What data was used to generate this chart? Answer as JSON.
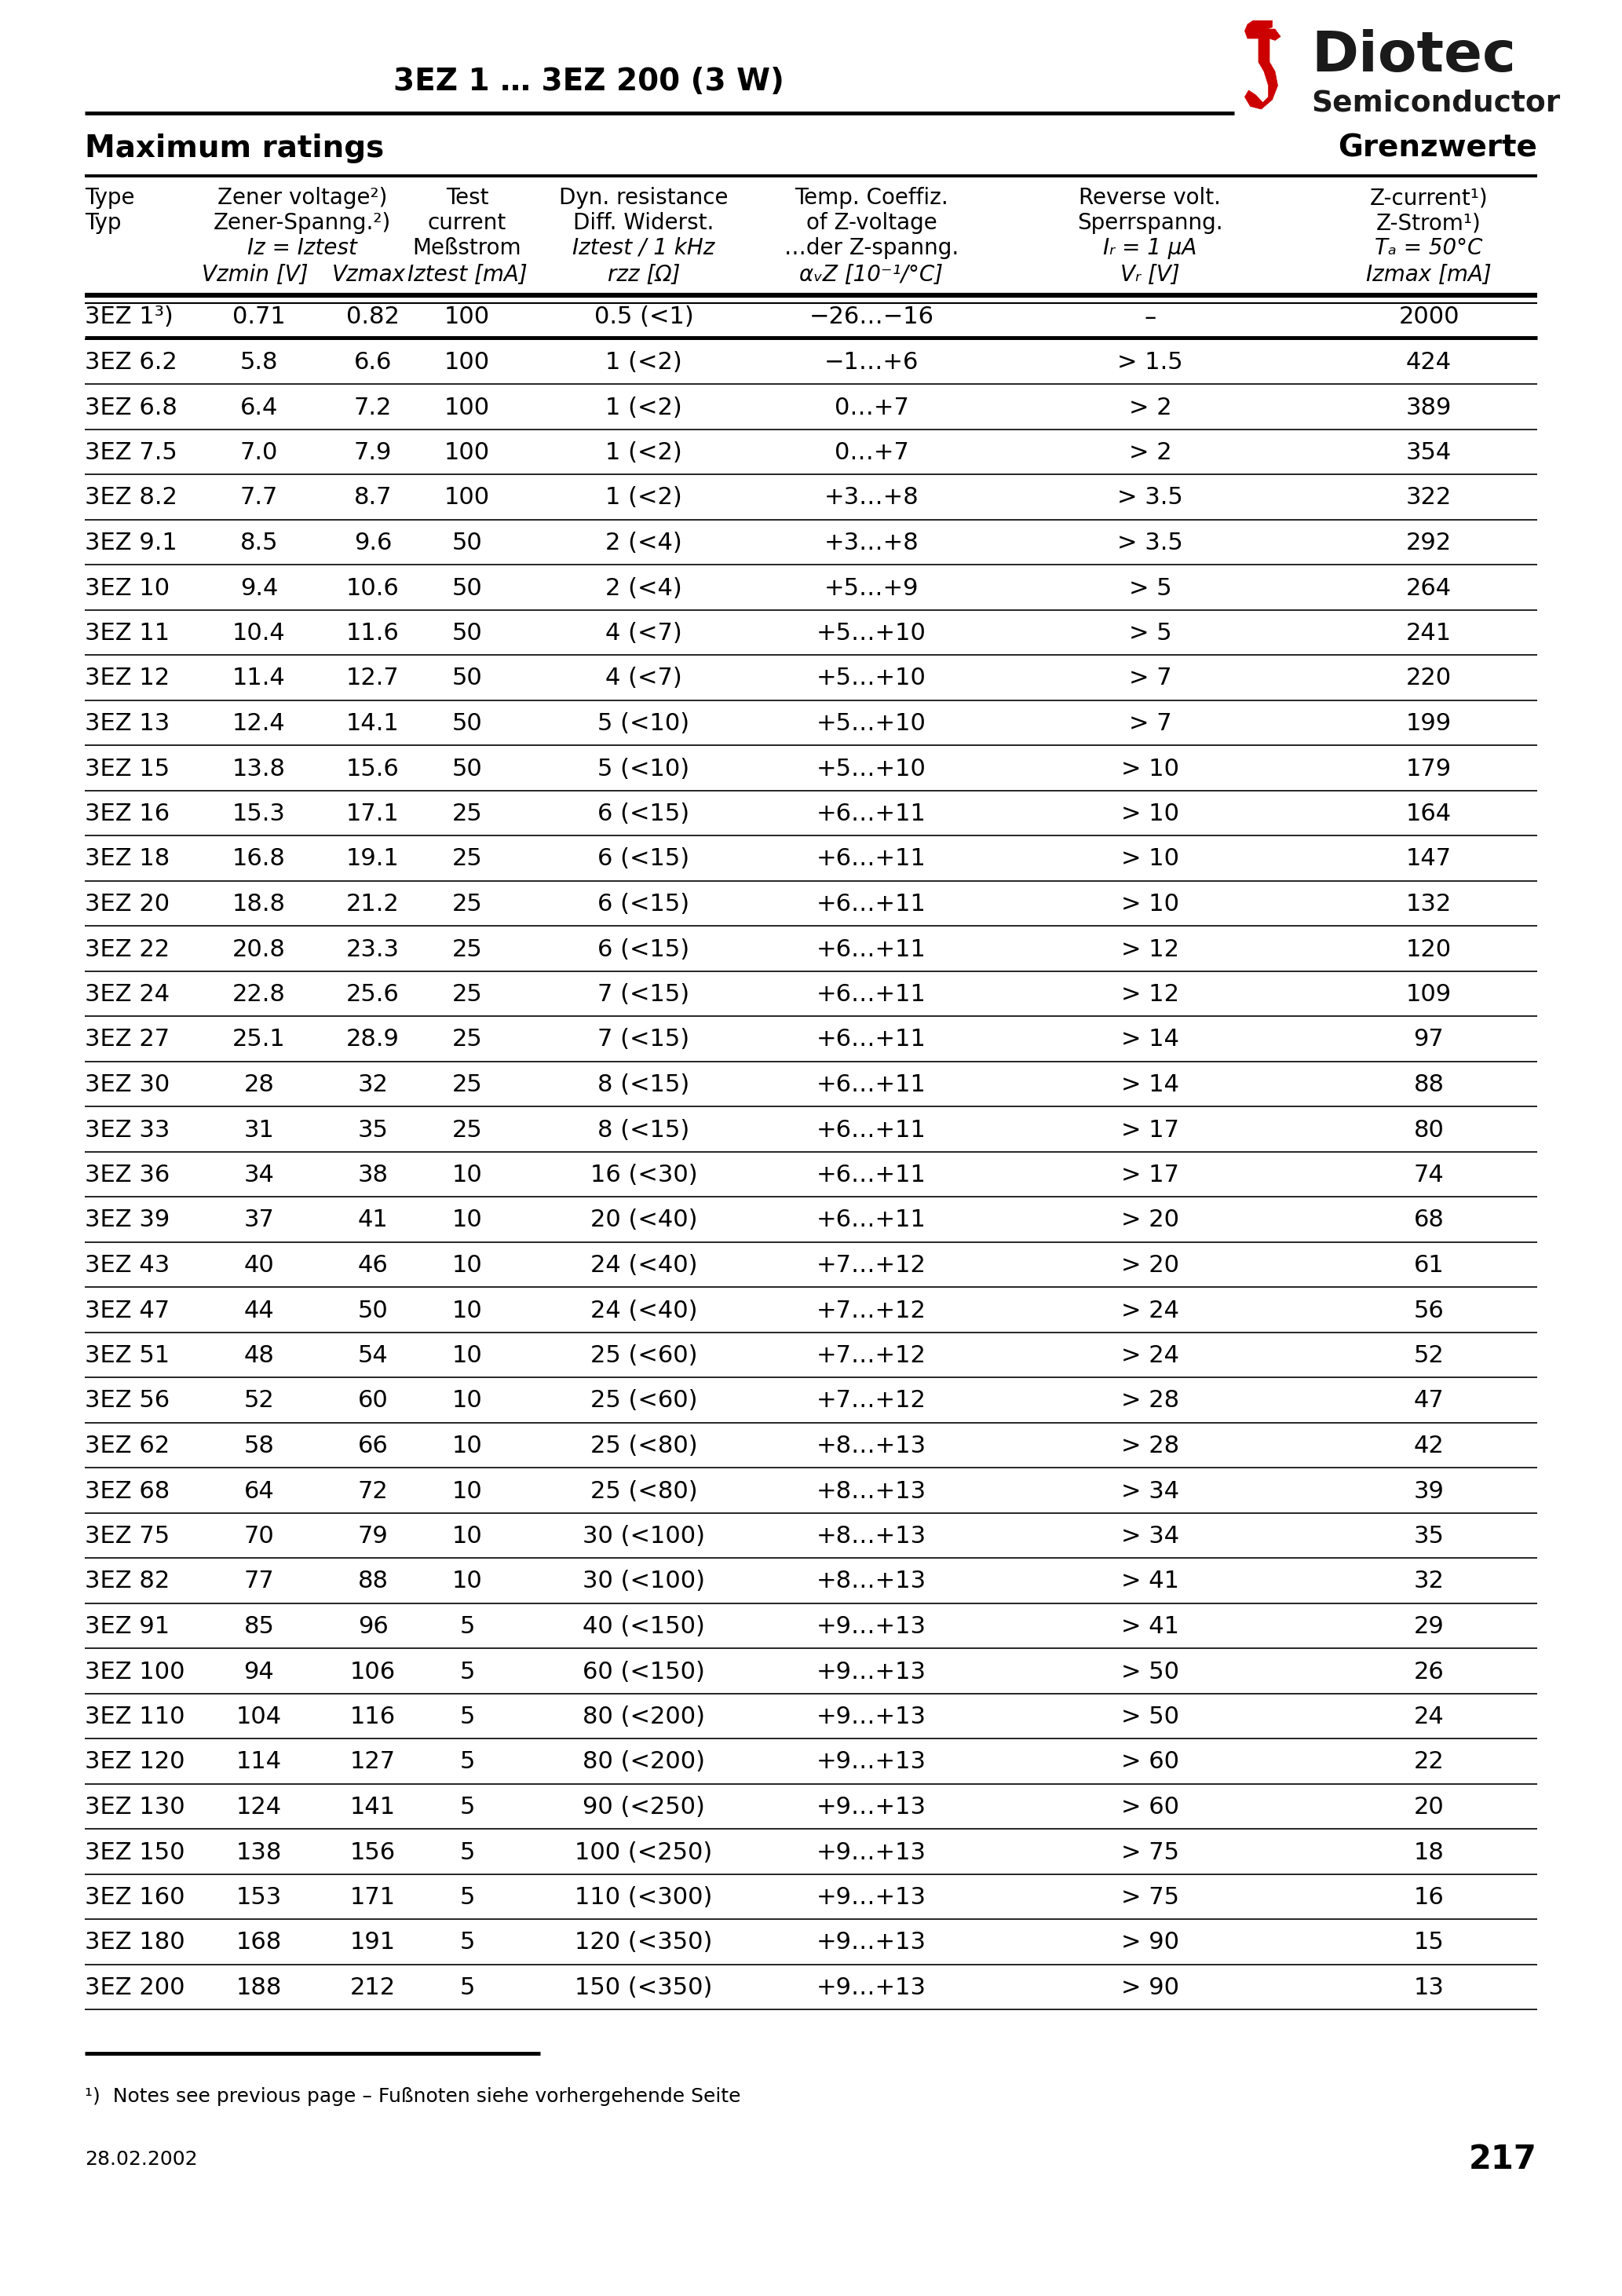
{
  "title": "3EZ 1 … 3EZ 200 (3 W)",
  "header_left": "Maximum ratings",
  "header_right": "Grenzwerte",
  "rows": [
    [
      "3EZ 1³)",
      "0.71",
      "0.82",
      "100",
      "0.5 (<1)",
      "−26…−16",
      "–",
      "2000"
    ],
    [
      "3EZ 6.2",
      "5.8",
      "6.6",
      "100",
      "1 (<2)",
      "−1…+6",
      "> 1.5",
      "424"
    ],
    [
      "3EZ 6.8",
      "6.4",
      "7.2",
      "100",
      "1 (<2)",
      "0…+7",
      "> 2",
      "389"
    ],
    [
      "3EZ 7.5",
      "7.0",
      "7.9",
      "100",
      "1 (<2)",
      "0…+7",
      "> 2",
      "354"
    ],
    [
      "3EZ 8.2",
      "7.7",
      "8.7",
      "100",
      "1 (<2)",
      "+3…+8",
      "> 3.5",
      "322"
    ],
    [
      "3EZ 9.1",
      "8.5",
      "9.6",
      "50",
      "2 (<4)",
      "+3…+8",
      "> 3.5",
      "292"
    ],
    [
      "3EZ 10",
      "9.4",
      "10.6",
      "50",
      "2 (<4)",
      "+5…+9",
      "> 5",
      "264"
    ],
    [
      "3EZ 11",
      "10.4",
      "11.6",
      "50",
      "4 (<7)",
      "+5…+10",
      "> 5",
      "241"
    ],
    [
      "3EZ 12",
      "11.4",
      "12.7",
      "50",
      "4 (<7)",
      "+5…+10",
      "> 7",
      "220"
    ],
    [
      "3EZ 13",
      "12.4",
      "14.1",
      "50",
      "5 (<10)",
      "+5…+10",
      "> 7",
      "199"
    ],
    [
      "3EZ 15",
      "13.8",
      "15.6",
      "50",
      "5 (<10)",
      "+5…+10",
      "> 10",
      "179"
    ],
    [
      "3EZ 16",
      "15.3",
      "17.1",
      "25",
      "6 (<15)",
      "+6…+11",
      "> 10",
      "164"
    ],
    [
      "3EZ 18",
      "16.8",
      "19.1",
      "25",
      "6 (<15)",
      "+6…+11",
      "> 10",
      "147"
    ],
    [
      "3EZ 20",
      "18.8",
      "21.2",
      "25",
      "6 (<15)",
      "+6…+11",
      "> 10",
      "132"
    ],
    [
      "3EZ 22",
      "20.8",
      "23.3",
      "25",
      "6 (<15)",
      "+6…+11",
      "> 12",
      "120"
    ],
    [
      "3EZ 24",
      "22.8",
      "25.6",
      "25",
      "7 (<15)",
      "+6…+11",
      "> 12",
      "109"
    ],
    [
      "3EZ 27",
      "25.1",
      "28.9",
      "25",
      "7 (<15)",
      "+6…+11",
      "> 14",
      "97"
    ],
    [
      "3EZ 30",
      "28",
      "32",
      "25",
      "8 (<15)",
      "+6…+11",
      "> 14",
      "88"
    ],
    [
      "3EZ 33",
      "31",
      "35",
      "25",
      "8 (<15)",
      "+6…+11",
      "> 17",
      "80"
    ],
    [
      "3EZ 36",
      "34",
      "38",
      "10",
      "16 (<30)",
      "+6…+11",
      "> 17",
      "74"
    ],
    [
      "3EZ 39",
      "37",
      "41",
      "10",
      "20 (<40)",
      "+6…+11",
      "> 20",
      "68"
    ],
    [
      "3EZ 43",
      "40",
      "46",
      "10",
      "24 (<40)",
      "+7…+12",
      "> 20",
      "61"
    ],
    [
      "3EZ 47",
      "44",
      "50",
      "10",
      "24 (<40)",
      "+7…+12",
      "> 24",
      "56"
    ],
    [
      "3EZ 51",
      "48",
      "54",
      "10",
      "25 (<60)",
      "+7…+12",
      "> 24",
      "52"
    ],
    [
      "3EZ 56",
      "52",
      "60",
      "10",
      "25 (<60)",
      "+7…+12",
      "> 28",
      "47"
    ],
    [
      "3EZ 62",
      "58",
      "66",
      "10",
      "25 (<80)",
      "+8…+13",
      "> 28",
      "42"
    ],
    [
      "3EZ 68",
      "64",
      "72",
      "10",
      "25 (<80)",
      "+8…+13",
      "> 34",
      "39"
    ],
    [
      "3EZ 75",
      "70",
      "79",
      "10",
      "30 (<100)",
      "+8…+13",
      "> 34",
      "35"
    ],
    [
      "3EZ 82",
      "77",
      "88",
      "10",
      "30 (<100)",
      "+8…+13",
      "> 41",
      "32"
    ],
    [
      "3EZ 91",
      "85",
      "96",
      "5",
      "40 (<150)",
      "+9…+13",
      "> 41",
      "29"
    ],
    [
      "3EZ 100",
      "94",
      "106",
      "5",
      "60 (<150)",
      "+9…+13",
      "> 50",
      "26"
    ],
    [
      "3EZ 110",
      "104",
      "116",
      "5",
      "80 (<200)",
      "+9…+13",
      "> 50",
      "24"
    ],
    [
      "3EZ 120",
      "114",
      "127",
      "5",
      "80 (<200)",
      "+9…+13",
      "> 60",
      "22"
    ],
    [
      "3EZ 130",
      "124",
      "141",
      "5",
      "90 (<250)",
      "+9…+13",
      "> 60",
      "20"
    ],
    [
      "3EZ 150",
      "138",
      "156",
      "5",
      "100 (<250)",
      "+9…+13",
      "> 75",
      "18"
    ],
    [
      "3EZ 160",
      "153",
      "171",
      "5",
      "110 (<300)",
      "+9…+13",
      "> 75",
      "16"
    ],
    [
      "3EZ 180",
      "168",
      "191",
      "5",
      "120 (<350)",
      "+9…+13",
      "> 90",
      "15"
    ],
    [
      "3EZ 200",
      "188",
      "212",
      "5",
      "150 (<350)",
      "+9…+13",
      "> 90",
      "13"
    ]
  ],
  "footnote": "¹)  Notes see previous page – Fußnoten siehe vorhergehende Seite",
  "date": "28.02.2002",
  "page": "217"
}
